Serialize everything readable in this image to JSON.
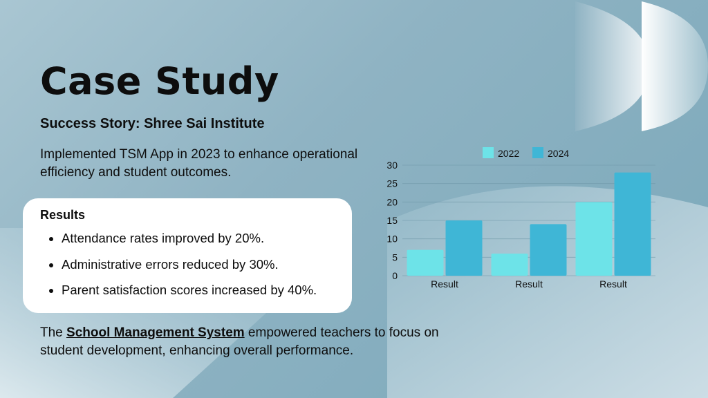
{
  "slide": {
    "title": "Case Study",
    "subtitle": "Success Story: Shree Sai Institute",
    "intro": "Implemented TSM App in 2023 to enhance operational efficiency and student outcomes.",
    "results": {
      "heading": "Results",
      "items": [
        "Attendance rates improved by 20%.",
        "Administrative errors reduced by 30%.",
        "Parent satisfaction scores increased by 40%."
      ]
    },
    "closing": {
      "before": "The ",
      "link": "School Management System",
      "after": " empowered teachers to focus on student development, enhancing overall performance."
    }
  },
  "colors": {
    "series_2022": "#6de3e8",
    "series_2024": "#3fb6d6",
    "gridline": "#6f97a8"
  },
  "chart_data": {
    "type": "bar",
    "categories": [
      "Result",
      "Result",
      "Result"
    ],
    "series": [
      {
        "name": "2022",
        "values": [
          7,
          6,
          20
        ]
      },
      {
        "name": "2024",
        "values": [
          15,
          14,
          28
        ]
      }
    ],
    "ylim": [
      0,
      30
    ],
    "yticks": [
      0,
      5,
      10,
      15,
      20,
      25,
      30
    ],
    "legend": "top",
    "grid": true
  }
}
